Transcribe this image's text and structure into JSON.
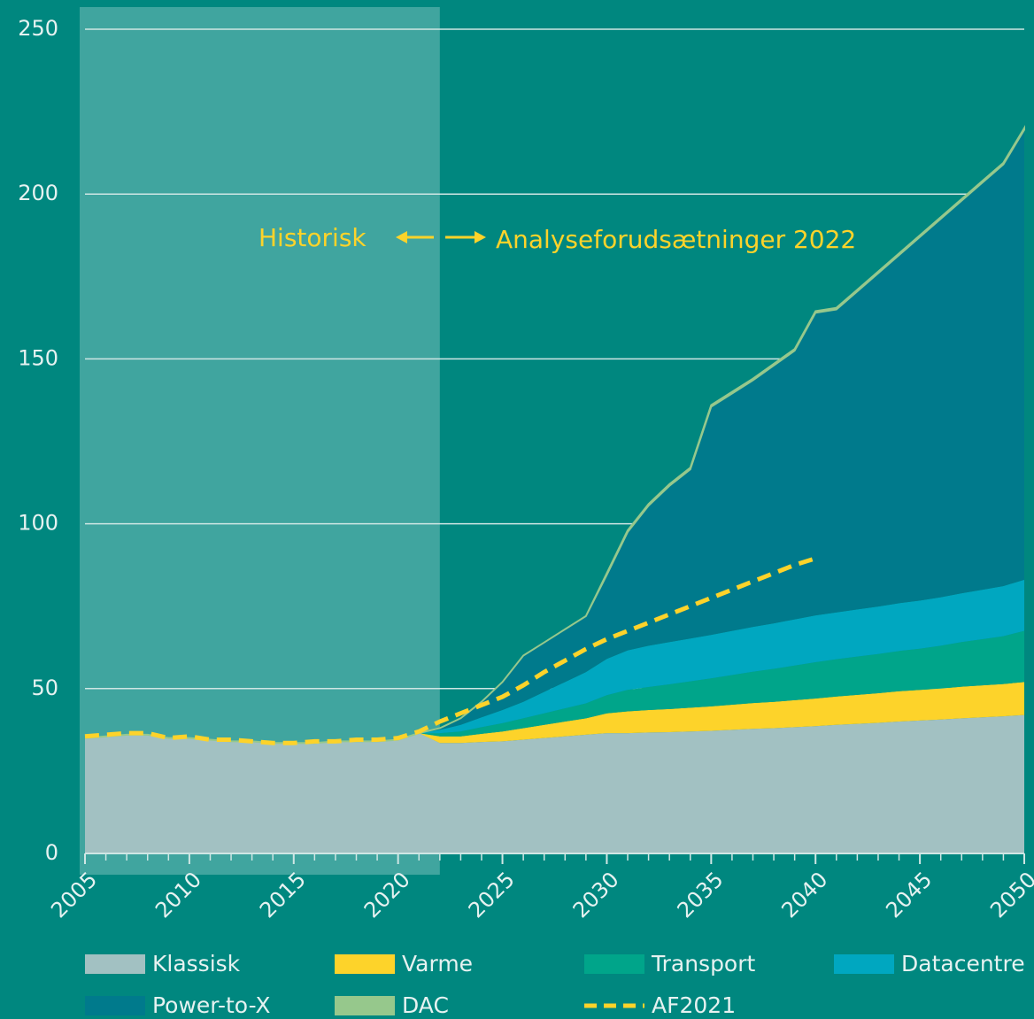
{
  "chart_data": {
    "type": "stacked_area",
    "x": [
      2005,
      2006,
      2007,
      2008,
      2009,
      2010,
      2011,
      2012,
      2013,
      2014,
      2015,
      2016,
      2017,
      2018,
      2019,
      2020,
      2021,
      2022,
      2023,
      2024,
      2025,
      2026,
      2027,
      2028,
      2029,
      2030,
      2031,
      2032,
      2033,
      2034,
      2035,
      2036,
      2037,
      2038,
      2039,
      2040,
      2041,
      2042,
      2043,
      2044,
      2045,
      2046,
      2047,
      2048,
      2049,
      2050
    ],
    "series": [
      {
        "name": "Klassisk",
        "color": "#a2c1c2",
        "values": [
          35,
          35.5,
          36,
          36,
          35,
          35,
          34.5,
          34,
          34,
          33.5,
          33.5,
          33.5,
          34,
          34,
          34,
          34.5,
          36.5,
          33.5,
          33.5,
          33.8,
          34,
          34.5,
          35,
          35.5,
          36,
          36.5,
          36.5,
          36.7,
          36.8,
          37,
          37.2,
          37.5,
          37.8,
          38,
          38.3,
          38.6,
          39,
          39.3,
          39.6,
          40,
          40.3,
          40.6,
          41,
          41.3,
          41.6,
          42
        ]
      },
      {
        "name": "Varme",
        "color": "#fdd32a",
        "values": [
          0,
          0,
          0,
          0,
          0,
          0,
          0,
          0,
          0,
          0,
          0,
          0,
          0,
          0,
          0,
          0,
          0,
          2,
          2,
          2.5,
          3,
          3.5,
          4,
          4.5,
          5,
          6,
          6.6,
          6.8,
          7,
          7.2,
          7.4,
          7.6,
          7.8,
          8,
          8.2,
          8.4,
          8.6,
          8.8,
          9,
          9.2,
          9.3,
          9.4,
          9.6,
          9.7,
          9.8,
          10
        ]
      },
      {
        "name": "Transport",
        "color": "#00a58a",
        "values": [
          0,
          0,
          0,
          0,
          0,
          0,
          0,
          0,
          0,
          0,
          0,
          0,
          0,
          0,
          0,
          0,
          0,
          1,
          1.5,
          2,
          2.5,
          3,
          3.5,
          4,
          4.5,
          5.5,
          6.5,
          7,
          7.5,
          8,
          8.5,
          9,
          9.5,
          10,
          10.5,
          11,
          11.3,
          11.6,
          11.9,
          12.2,
          12.5,
          13,
          13.5,
          14,
          14.5,
          15.5
        ]
      },
      {
        "name": "Datacentre",
        "color": "#00a7c0",
        "values": [
          0,
          0,
          0,
          0,
          0,
          0,
          0,
          0,
          0,
          0,
          0,
          0,
          0,
          0,
          0,
          0,
          0,
          1,
          2,
          3,
          4,
          5,
          6.5,
          8,
          9.5,
          11,
          12,
          12.5,
          12.8,
          13,
          13.2,
          13.4,
          13.6,
          13.8,
          14,
          14.2,
          14.2,
          14.3,
          14.4,
          14.5,
          14.6,
          14.7,
          14.8,
          15,
          15.2,
          15.5
        ]
      },
      {
        "name": "Power-to-X",
        "color": "#007a8c",
        "values": [
          0,
          0,
          0,
          0,
          0,
          0,
          0,
          0,
          0,
          0,
          0,
          0,
          0,
          0,
          0,
          0,
          0,
          0.5,
          2,
          4.7,
          8.5,
          14,
          15,
          16,
          17,
          25.5,
          35.9,
          42.5,
          47.4,
          51.3,
          69.2,
          72,
          74.8,
          78.2,
          81.5,
          91.8,
          91.9,
          96.5,
          101.1,
          105.6,
          110.3,
          114.8,
          119.1,
          123.5,
          127.9,
          136.5
        ]
      },
      {
        "name": "DAC",
        "color": "#96c88c",
        "values": [
          0,
          0,
          0,
          0,
          0,
          0,
          0,
          0,
          0,
          0,
          0,
          0,
          0,
          0,
          0,
          0,
          0,
          0,
          0,
          0,
          0,
          0,
          0,
          0,
          0,
          0.5,
          0.5,
          0.5,
          0.5,
          0.5,
          0.5,
          0.5,
          0.5,
          0.5,
          0.5,
          0.5,
          0.5,
          0.5,
          0.5,
          0.5,
          0.5,
          0.5,
          0.5,
          0.5,
          0.5,
          0.5
        ]
      }
    ],
    "lines": [
      {
        "name": "AF2021",
        "color": "#fdd32a",
        "dashed": true,
        "values": [
          35.5,
          36,
          36.5,
          36.5,
          35,
          35.5,
          34.5,
          34.5,
          34,
          33.5,
          33.5,
          34,
          34,
          34.5,
          34.5,
          35,
          37,
          40,
          42.5,
          45,
          47.5,
          51,
          55,
          58.5,
          62,
          65,
          67.5,
          70,
          72.5,
          75,
          77.5,
          80,
          82.5,
          85,
          87.5,
          89.5,
          null,
          null,
          null,
          null,
          null,
          null,
          null,
          null,
          null,
          null
        ]
      }
    ],
    "xlim": [
      2005,
      2050
    ],
    "xticks": [
      2005,
      2010,
      2015,
      2020,
      2025,
      2030,
      2035,
      2040,
      2045,
      2050
    ],
    "ylim": [
      0,
      250
    ],
    "yticks": [
      0,
      50,
      100,
      150,
      200,
      250
    ],
    "grid": true,
    "shaded_xlim": [
      2005,
      2022
    ],
    "annotations": [
      "Historisk",
      "Analyseforudsætninger 2022"
    ]
  }
}
